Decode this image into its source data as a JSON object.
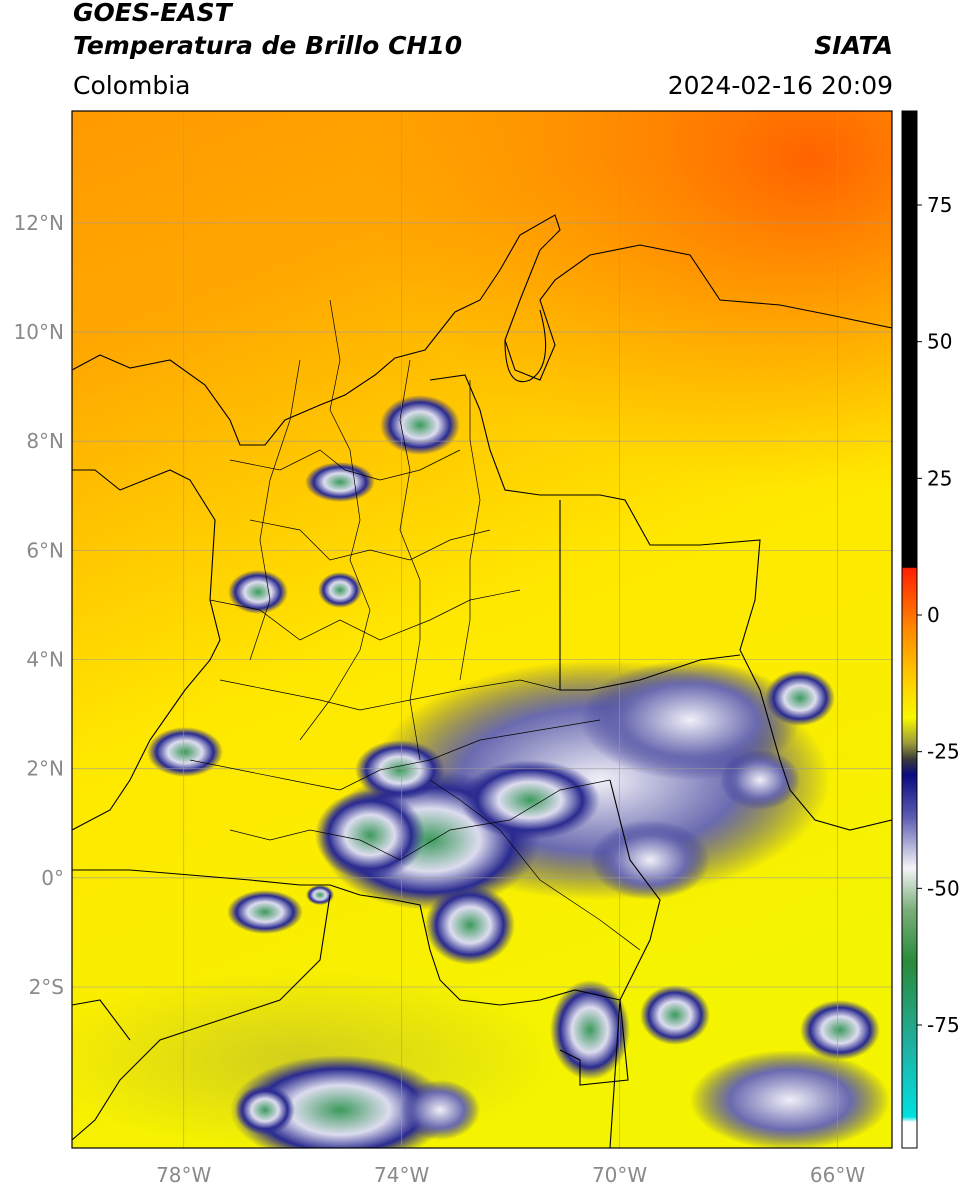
{
  "header": {
    "title_line1": "GOES-EAST",
    "title_line2": "Temperatura de Brillo CH10",
    "brand": "SIATA",
    "region": "Colombia",
    "timestamp": "2024-02-16 20:09"
  },
  "map": {
    "lon_ticks": [
      {
        "value": -78,
        "label": "78°W"
      },
      {
        "value": -74,
        "label": "74°W"
      },
      {
        "value": -70,
        "label": "70°W"
      },
      {
        "value": -66,
        "label": "66°W"
      }
    ],
    "lat_ticks": [
      {
        "value": 12,
        "label": "12°N"
      },
      {
        "value": 10,
        "label": "10°N"
      },
      {
        "value": 8,
        "label": "8°N"
      },
      {
        "value": 6,
        "label": "6°N"
      },
      {
        "value": 4,
        "label": "4°N"
      },
      {
        "value": 2,
        "label": "2°N"
      },
      {
        "value": 0,
        "label": "0°"
      },
      {
        "value": -2,
        "label": "2°S"
      }
    ],
    "colors": {
      "background_warm": "#ffa500",
      "background_hot": "#ff6a00",
      "background_mid": "#ffd400",
      "background_cool": "#f6f600",
      "cloud_dark": "#1a1a8a",
      "cloud_light": "#e8e8f4",
      "cloud_core": "#3a9a5a",
      "grid": "#9a9a9a",
      "border": "#000000"
    }
  },
  "colorbar": {
    "ticks": [
      {
        "value": 75,
        "label": "75"
      },
      {
        "value": 50,
        "label": "50"
      },
      {
        "value": 25,
        "label": "25"
      },
      {
        "value": 0,
        "label": "0"
      },
      {
        "value": -25,
        "label": "-25"
      },
      {
        "value": -50,
        "label": "-50"
      },
      {
        "value": -75,
        "label": "-75"
      }
    ]
  }
}
